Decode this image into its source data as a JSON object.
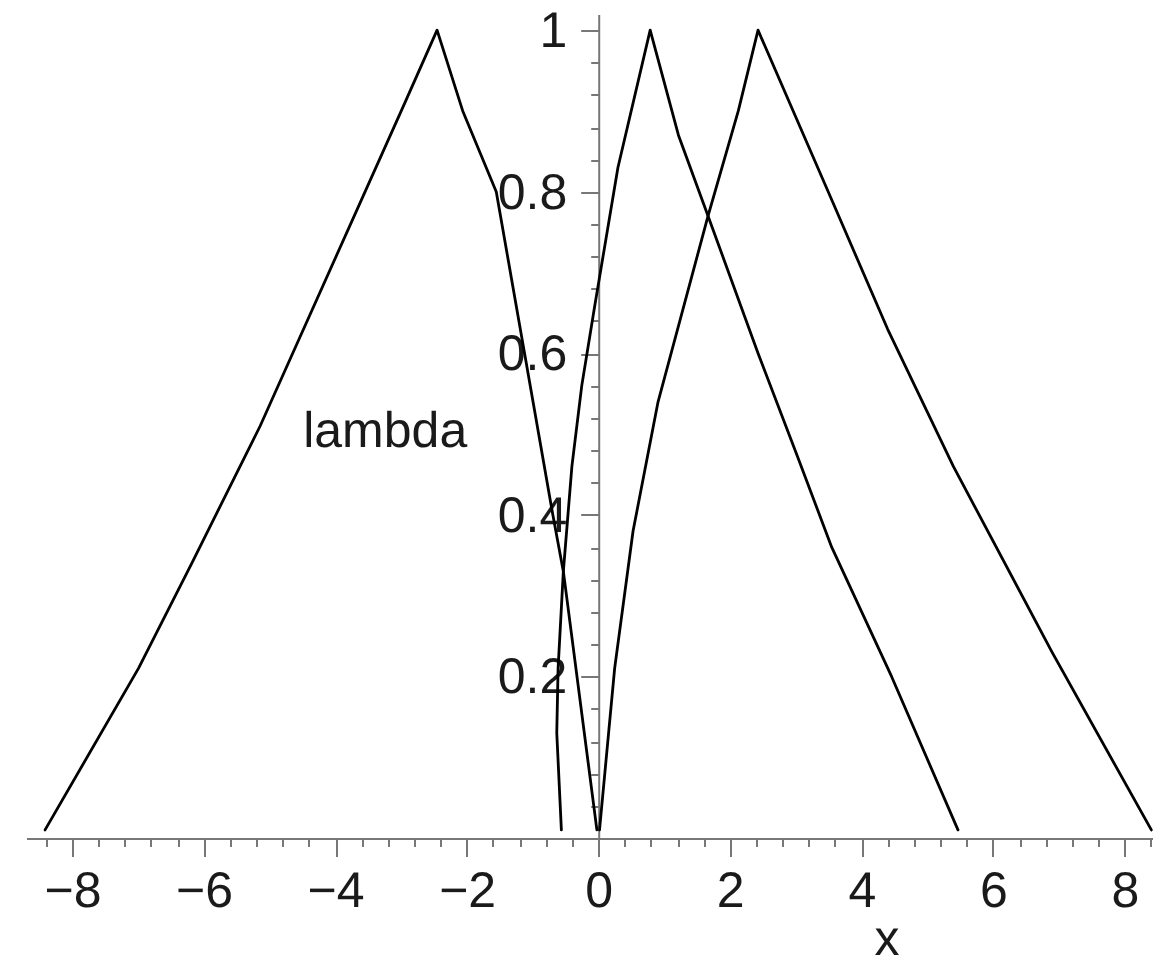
{
  "chart_data": {
    "type": "line",
    "xlabel": "x",
    "ylabel": "lambda",
    "xlim": [
      -8.7,
      8.42
    ],
    "ylim": [
      0,
      1.02
    ],
    "xticks": [
      {
        "value": -8.4,
        "label": null
      },
      {
        "value": -8,
        "label": "−8"
      },
      {
        "value": -7.6,
        "label": null
      },
      {
        "value": -7.2,
        "label": null
      },
      {
        "value": -6.8,
        "label": null
      },
      {
        "value": -6.4,
        "label": null
      },
      {
        "value": -6,
        "label": "−6"
      },
      {
        "value": -5.6,
        "label": null
      },
      {
        "value": -5.2,
        "label": null
      },
      {
        "value": -4.8,
        "label": null
      },
      {
        "value": -4.4,
        "label": null
      },
      {
        "value": -4,
        "label": "−4"
      },
      {
        "value": -3.6,
        "label": null
      },
      {
        "value": -3.2,
        "label": null
      },
      {
        "value": -2.8,
        "label": null
      },
      {
        "value": -2.4,
        "label": null
      },
      {
        "value": -2,
        "label": "−2"
      },
      {
        "value": -1.6,
        "label": null
      },
      {
        "value": -1.2,
        "label": null
      },
      {
        "value": -0.8,
        "label": null
      },
      {
        "value": -0.4,
        "label": null
      },
      0,
      {
        "value": 0.4,
        "label": null
      },
      {
        "value": 0.8,
        "label": null
      },
      {
        "value": 1.2,
        "label": null
      },
      {
        "value": 1.6,
        "label": null
      },
      2,
      {
        "value": 2.4,
        "label": null
      },
      {
        "value": 2.8,
        "label": null
      },
      {
        "value": 3.2,
        "label": null
      },
      {
        "value": 3.6,
        "label": null
      },
      4,
      {
        "value": 4.4,
        "label": null
      },
      {
        "value": 4.8,
        "label": null
      },
      {
        "value": 5.2,
        "label": null
      },
      {
        "value": 5.6,
        "label": null
      },
      6,
      {
        "value": 6.4,
        "label": null
      },
      {
        "value": 6.8,
        "label": null
      },
      {
        "value": 7.2,
        "label": null
      },
      {
        "value": 7.6,
        "label": null
      },
      8,
      {
        "value": 8.4,
        "label": null
      }
    ],
    "yticks": [
      {
        "value": 0.04,
        "label": null
      },
      {
        "value": 0.08,
        "label": null
      },
      {
        "value": 0.12,
        "label": null
      },
      {
        "value": 0.16,
        "label": null
      },
      0.2,
      {
        "value": 0.24,
        "label": null
      },
      {
        "value": 0.28,
        "label": null
      },
      {
        "value": 0.32,
        "label": null
      },
      {
        "value": 0.36,
        "label": null
      },
      0.4,
      {
        "value": 0.44,
        "label": null
      },
      {
        "value": 0.48,
        "label": null
      },
      {
        "value": 0.52,
        "label": null
      },
      {
        "value": 0.56,
        "label": null
      },
      0.6,
      {
        "value": 0.64,
        "label": null
      },
      {
        "value": 0.68,
        "label": null
      },
      {
        "value": 0.72,
        "label": null
      },
      {
        "value": 0.76,
        "label": null
      },
      0.8,
      {
        "value": 0.84,
        "label": null
      },
      {
        "value": 0.88,
        "label": null
      },
      {
        "value": 0.92,
        "label": null
      },
      {
        "value": 0.96,
        "label": null
      },
      1
    ],
    "series": [
      {
        "color": "#000000",
        "x": [
          -8.41,
          -6.99,
          -6.18,
          -5.14,
          -3.6,
          -2.94,
          -2.45,
          -2.06,
          -1.55,
          -1.12,
          -0.69,
          -0.53,
          -0.02
        ],
        "values": [
          0.01,
          0.21,
          0.34,
          0.51,
          0.79,
          0.91,
          1,
          0.9,
          0.8,
          0.6,
          0.4,
          0.33,
          0.01
        ]
      },
      {
        "color": "#000000",
        "x": [
          -0.56,
          -0.63,
          -0.61,
          -0.53,
          -0.4,
          -0.25,
          -0.05,
          0.3,
          0.79,
          1.22,
          1.67,
          2.43,
          3.04,
          3.55,
          4.46,
          5.47
        ],
        "values": [
          0.01,
          0.13,
          0.21,
          0.33,
          0.46,
          0.56,
          0.66,
          0.83,
          1,
          0.87,
          0.77,
          0.6,
          0.47,
          0.36,
          0.2,
          0.01
        ]
      },
      {
        "color": "#000000",
        "x": [
          0.02,
          0.25,
          0.53,
          0.91,
          1.67,
          2.13,
          2.43,
          3.55,
          4.4,
          5.4,
          6.9,
          8.41
        ],
        "values": [
          0.01,
          0.21,
          0.38,
          0.54,
          0.77,
          0.9,
          1,
          0.79,
          0.63,
          0.46,
          0.23,
          0.01
        ]
      }
    ]
  }
}
